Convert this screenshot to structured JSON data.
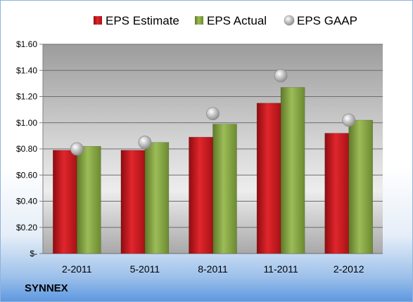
{
  "brand": "SYNNEX",
  "chart_data": {
    "type": "bar",
    "categories": [
      "2-2011",
      "5-2011",
      "8-2011",
      "11-2011",
      "2-2012"
    ],
    "series": [
      {
        "name": "EPS Estimate",
        "kind": "bar",
        "color": "#c0161c",
        "values": [
          0.79,
          0.79,
          0.89,
          1.15,
          0.92
        ]
      },
      {
        "name": "EPS Actual",
        "kind": "bar",
        "color": "#7a9a3c",
        "values": [
          0.82,
          0.85,
          0.99,
          1.27,
          1.02
        ]
      },
      {
        "name": "EPS GAAP",
        "kind": "marker",
        "color": "#b8b8b8",
        "values": [
          0.8,
          0.85,
          1.07,
          1.36,
          1.02
        ]
      }
    ],
    "ylim": [
      0,
      1.6
    ],
    "yticks": [
      0,
      0.2,
      0.4,
      0.6,
      0.8,
      1.0,
      1.2,
      1.4,
      1.6
    ],
    "ytick_labels": [
      "$-",
      "$0.20",
      "$0.40",
      "$0.60",
      "$0.80",
      "$1.00",
      "$1.20",
      "$1.40",
      "$1.60"
    ],
    "grid": true,
    "legend_position": "top"
  }
}
